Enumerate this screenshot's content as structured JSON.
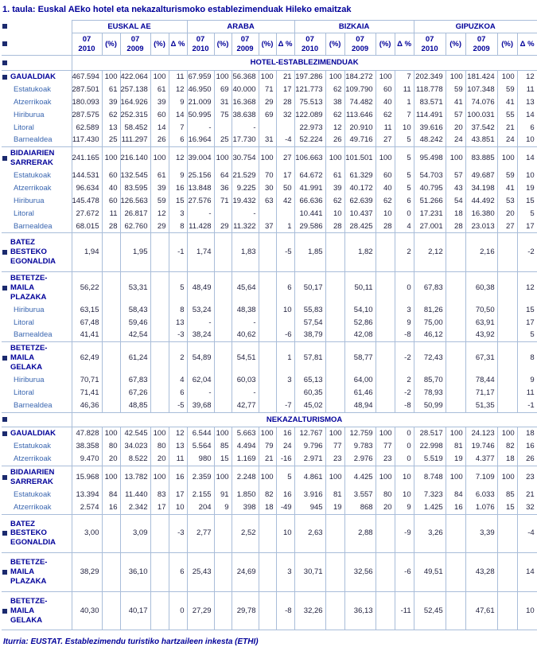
{
  "title": "1. taula: Euskal AEko hotel eta nekazalturismoko establezimenduak Hileko emaitzak",
  "source": "Iturria: EUSTAT. Establezimendu turistiko hartzaileen inkesta (ETHI)",
  "colors": {
    "navy": "#000099",
    "sub_blue": "#3a66b0",
    "ink": "#1e1e3c",
    "line": "#a9bdd9",
    "marker": "#1b2a6e"
  },
  "regions": [
    "EUSKAL AE",
    "ARABA",
    "BIZKAIA",
    "GIPUZKOA"
  ],
  "columns": {
    "current": "07\n2010",
    "pct": "(%)",
    "previous": "07\n2009",
    "delta": "Δ %"
  },
  "sections": [
    {
      "header": "HOTEL-ESTABLEZIMENDUAK",
      "blocks": [
        {
          "rows": [
            {
              "label": "GAUALDIAK",
              "style": "head",
              "cells": [
                "467.594",
                "100",
                "422.064",
                "100",
                "11",
                "67.959",
                "100",
                "56.368",
                "100",
                "21",
                "197.286",
                "100",
                "184.272",
                "100",
                "7",
                "202.349",
                "100",
                "181.424",
                "100",
                "12"
              ]
            },
            {
              "label": "Estatukoak",
              "style": "sub",
              "cells": [
                "287.501",
                "61",
                "257.138",
                "61",
                "12",
                "46.950",
                "69",
                "40.000",
                "71",
                "17",
                "121.773",
                "62",
                "109.790",
                "60",
                "11",
                "118.778",
                "59",
                "107.348",
                "59",
                "11"
              ]
            },
            {
              "label": "Atzerrikoak",
              "style": "sub",
              "cells": [
                "180.093",
                "39",
                "164.926",
                "39",
                "9",
                "21.009",
                "31",
                "16.368",
                "29",
                "28",
                "75.513",
                "38",
                "74.482",
                "40",
                "1",
                "83.571",
                "41",
                "74.076",
                "41",
                "13"
              ]
            },
            {
              "label": "Hiriburua",
              "style": "sub",
              "cells": [
                "287.575",
                "62",
                "252.315",
                "60",
                "14",
                "50.995",
                "75",
                "38.638",
                "69",
                "32",
                "122.089",
                "62",
                "113.646",
                "62",
                "7",
                "114.491",
                "57",
                "100.031",
                "55",
                "14"
              ]
            },
            {
              "label": "Litoral",
              "style": "sub",
              "cells": [
                "62.589",
                "13",
                "58.452",
                "14",
                "7",
                "-",
                "",
                "-",
                "",
                "",
                "22.973",
                "12",
                "20.910",
                "11",
                "10",
                "39.616",
                "20",
                "37.542",
                "21",
                "6"
              ]
            },
            {
              "label": "Barnealdea",
              "style": "sub",
              "cells": [
                "117.430",
                "25",
                "111.297",
                "26",
                "6",
                "16.964",
                "25",
                "17.730",
                "31",
                "-4",
                "52.224",
                "26",
                "49.716",
                "27",
                "5",
                "48.242",
                "24",
                "43.851",
                "24",
                "10"
              ]
            }
          ]
        },
        {
          "rows": [
            {
              "label": "BIDAIARIEN\nSARRERAK",
              "style": "head",
              "cells": [
                "241.165",
                "100",
                "216.140",
                "100",
                "12",
                "39.004",
                "100",
                "30.754",
                "100",
                "27",
                "106.663",
                "100",
                "101.501",
                "100",
                "5",
                "95.498",
                "100",
                "83.885",
                "100",
                "14"
              ]
            },
            {
              "label": "Estatukoak",
              "style": "sub",
              "cells": [
                "144.531",
                "60",
                "132.545",
                "61",
                "9",
                "25.156",
                "64",
                "21.529",
                "70",
                "17",
                "64.672",
                "61",
                "61.329",
                "60",
                "5",
                "54.703",
                "57",
                "49.687",
                "59",
                "10"
              ]
            },
            {
              "label": "Atzerrikoak",
              "style": "sub",
              "cells": [
                "96.634",
                "40",
                "83.595",
                "39",
                "16",
                "13.848",
                "36",
                "9.225",
                "30",
                "50",
                "41.991",
                "39",
                "40.172",
                "40",
                "5",
                "40.795",
                "43",
                "34.198",
                "41",
                "19"
              ]
            },
            {
              "label": "Hiriburua",
              "style": "sub",
              "cells": [
                "145.478",
                "60",
                "126.563",
                "59",
                "15",
                "27.576",
                "71",
                "19.432",
                "63",
                "42",
                "66.636",
                "62",
                "62.639",
                "62",
                "6",
                "51.266",
                "54",
                "44.492",
                "53",
                "15"
              ]
            },
            {
              "label": "Litoral",
              "style": "sub",
              "cells": [
                "27.672",
                "11",
                "26.817",
                "12",
                "3",
                "-",
                "",
                "-",
                "",
                "",
                "10.441",
                "10",
                "10.437",
                "10",
                "0",
                "17.231",
                "18",
                "16.380",
                "20",
                "5"
              ]
            },
            {
              "label": "Barnealdea",
              "style": "sub",
              "cells": [
                "68.015",
                "28",
                "62.760",
                "29",
                "8",
                "11.428",
                "29",
                "11.322",
                "37",
                "1",
                "29.586",
                "28",
                "28.425",
                "28",
                "4",
                "27.001",
                "28",
                "23.013",
                "27",
                "17"
              ]
            }
          ]
        },
        {
          "rows": [
            {
              "label": "BATEZ BESTEKO\nEGONALDIA",
              "style": "head",
              "cells": [
                "1,94",
                "",
                "1,95",
                "",
                "-1",
                "1,74",
                "",
                "1,83",
                "",
                "-5",
                "1,85",
                "",
                "1,82",
                "",
                "2",
                "2,12",
                "",
                "2,16",
                "",
                "-2"
              ]
            }
          ]
        },
        {
          "rows": [
            {
              "label": "BETETZE-MAILA\nPLAZAKA",
              "style": "head",
              "cells": [
                "56,22",
                "",
                "53,31",
                "",
                "5",
                "48,49",
                "",
                "45,64",
                "",
                "6",
                "50,17",
                "",
                "50,11",
                "",
                "0",
                "67,83",
                "",
                "60,38",
                "",
                "12"
              ]
            },
            {
              "label": "Hiriburua",
              "style": "sub",
              "cells": [
                "63,15",
                "",
                "58,43",
                "",
                "8",
                "53,24",
                "",
                "48,38",
                "",
                "10",
                "55,83",
                "",
                "54,10",
                "",
                "3",
                "81,26",
                "",
                "70,50",
                "",
                "15"
              ]
            },
            {
              "label": "Litoral",
              "style": "sub",
              "cells": [
                "67,48",
                "",
                "59,46",
                "",
                "13",
                "-",
                "",
                "-",
                "",
                "",
                "57,54",
                "",
                "52,86",
                "",
                "9",
                "75,00",
                "",
                "63,91",
                "",
                "17"
              ]
            },
            {
              "label": "Barnealdea",
              "style": "sub",
              "cells": [
                "41,41",
                "",
                "42,54",
                "",
                "-3",
                "38,24",
                "",
                "40,62",
                "",
                "-6",
                "38,79",
                "",
                "42,08",
                "",
                "-8",
                "46,12",
                "",
                "43,92",
                "",
                "5"
              ]
            }
          ]
        },
        {
          "rows": [
            {
              "label": "BETETZE-MAILA\nGELAKA",
              "style": "head",
              "cells": [
                "62,49",
                "",
                "61,24",
                "",
                "2",
                "54,89",
                "",
                "54,51",
                "",
                "1",
                "57,81",
                "",
                "58,77",
                "",
                "-2",
                "72,43",
                "",
                "67,31",
                "",
                "8"
              ]
            },
            {
              "label": "Hiriburua",
              "style": "sub",
              "cells": [
                "70,71",
                "",
                "67,83",
                "",
                "4",
                "62,04",
                "",
                "60,03",
                "",
                "3",
                "65,13",
                "",
                "64,00",
                "",
                "2",
                "85,70",
                "",
                "78,44",
                "",
                "9"
              ]
            },
            {
              "label": "Litoral",
              "style": "sub",
              "cells": [
                "71,41",
                "",
                "67,26",
                "",
                "6",
                "-",
                "",
                "-",
                "",
                "",
                "60,35",
                "",
                "61,46",
                "",
                "-2",
                "78,93",
                "",
                "71,17",
                "",
                "11"
              ]
            },
            {
              "label": "Barnealdea",
              "style": "sub",
              "cells": [
                "46,36",
                "",
                "48,85",
                "",
                "-5",
                "39,68",
                "",
                "42,77",
                "",
                "-7",
                "45,02",
                "",
                "48,94",
                "",
                "-8",
                "50,99",
                "",
                "51,35",
                "",
                "-1"
              ]
            }
          ]
        }
      ]
    },
    {
      "header": "NEKAZALTURISMOA",
      "blocks": [
        {
          "rows": [
            {
              "label": "GAUALDIAK",
              "style": "head",
              "cells": [
                "47.828",
                "100",
                "42.545",
                "100",
                "12",
                "6.544",
                "100",
                "5.663",
                "100",
                "16",
                "12.767",
                "100",
                "12.759",
                "100",
                "0",
                "28.517",
                "100",
                "24.123",
                "100",
                "18"
              ]
            },
            {
              "label": "Estatukoak",
              "style": "sub",
              "cells": [
                "38.358",
                "80",
                "34.023",
                "80",
                "13",
                "5.564",
                "85",
                "4.494",
                "79",
                "24",
                "9.796",
                "77",
                "9.783",
                "77",
                "0",
                "22.998",
                "81",
                "19.746",
                "82",
                "16"
              ]
            },
            {
              "label": "Atzerrikoak",
              "style": "sub",
              "cells": [
                "9.470",
                "20",
                "8.522",
                "20",
                "11",
                "980",
                "15",
                "1.169",
                "21",
                "-16",
                "2.971",
                "23",
                "2.976",
                "23",
                "0",
                "5.519",
                "19",
                "4.377",
                "18",
                "26"
              ]
            }
          ]
        },
        {
          "rows": [
            {
              "label": "BIDAIARIEN\nSARRERAK",
              "style": "head",
              "cells": [
                "15.968",
                "100",
                "13.782",
                "100",
                "16",
                "2.359",
                "100",
                "2.248",
                "100",
                "5",
                "4.861",
                "100",
                "4.425",
                "100",
                "10",
                "8.748",
                "100",
                "7.109",
                "100",
                "23"
              ]
            },
            {
              "label": "Estatukoak",
              "style": "sub",
              "cells": [
                "13.394",
                "84",
                "11.440",
                "83",
                "17",
                "2.155",
                "91",
                "1.850",
                "82",
                "16",
                "3.916",
                "81",
                "3.557",
                "80",
                "10",
                "7.323",
                "84",
                "6.033",
                "85",
                "21"
              ]
            },
            {
              "label": "Atzerrikoak",
              "style": "sub",
              "cells": [
                "2.574",
                "16",
                "2.342",
                "17",
                "10",
                "204",
                "9",
                "398",
                "18",
                "-49",
                "945",
                "19",
                "868",
                "20",
                "9",
                "1.425",
                "16",
                "1.076",
                "15",
                "32"
              ]
            }
          ]
        },
        {
          "rows": [
            {
              "label": "BATEZ BESTEKO\nEGONALDIA",
              "style": "head",
              "cells": [
                "3,00",
                "",
                "3,09",
                "",
                "-3",
                "2,77",
                "",
                "2,52",
                "",
                "10",
                "2,63",
                "",
                "2,88",
                "",
                "-9",
                "3,26",
                "",
                "3,39",
                "",
                "-4"
              ]
            }
          ]
        },
        {
          "rows": [
            {
              "label": "BETETZE-MAILA\nPLAZAKA",
              "style": "head",
              "cells": [
                "38,29",
                "",
                "36,10",
                "",
                "6",
                "25,43",
                "",
                "24,69",
                "",
                "3",
                "30,71",
                "",
                "32,56",
                "",
                "-6",
                "49,51",
                "",
                "43,28",
                "",
                "14"
              ]
            }
          ]
        },
        {
          "rows": [
            {
              "label": "BETETZE-MAILA\nGELAKA",
              "style": "head",
              "cells": [
                "40,30",
                "",
                "40,17",
                "",
                "0",
                "27,29",
                "",
                "29,78",
                "",
                "-8",
                "32,26",
                "",
                "36,13",
                "",
                "-11",
                "52,45",
                "",
                "47,61",
                "",
                "10"
              ]
            }
          ]
        }
      ]
    }
  ]
}
